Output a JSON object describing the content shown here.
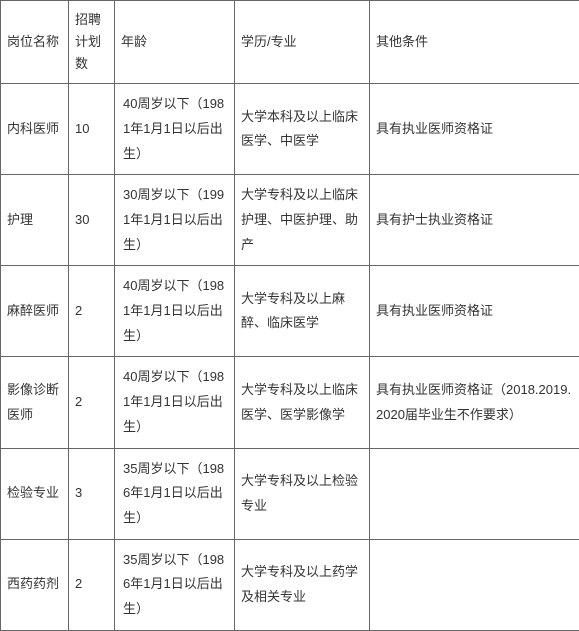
{
  "table": {
    "columns": [
      {
        "label": "岗位名称"
      },
      {
        "label": "招聘计划数"
      },
      {
        "label": "年龄"
      },
      {
        "label": "学历/专业"
      },
      {
        "label": "其他条件"
      }
    ],
    "rows": [
      {
        "position": "内科医师",
        "plan": "10",
        "age": "40周岁以下（1981年1月1日以后出生）",
        "edu": "大学本科及以上临床医学、中医学",
        "other": "具有执业医师资格证"
      },
      {
        "position": "护理",
        "plan": "30",
        "age": "30周岁以下（1991年1月1日以后出生）",
        "edu": "大学专科及以上临床护理、中医护理、助产",
        "other": "具有护士执业资格证"
      },
      {
        "position": "麻醉医师",
        "plan": "2",
        "age": "40周岁以下（1981年1月1日以后出生）",
        "edu": "大学专科及以上麻醉、临床医学",
        "other": "具有执业医师资格证"
      },
      {
        "position": "影像诊断医师",
        "plan": "2",
        "age": "40周岁以下（1981年1月1日以后出生）",
        "edu": "大学专科及以上临床医学、医学影像学",
        "other": "具有执业医师资格证（2018.2019.2020届毕业生不作要求）"
      },
      {
        "position": "检验专业",
        "plan": "3",
        "age": "35周岁以下（1986年1月1日以后出生）",
        "edu": "大学专科及以上检验专业",
        "other": ""
      },
      {
        "position": "西药药剂",
        "plan": "2",
        "age": "35周岁以下（1986年1月1日以后出生）",
        "edu": "大学专科及以上药学及相关专业",
        "other": ""
      }
    ]
  }
}
